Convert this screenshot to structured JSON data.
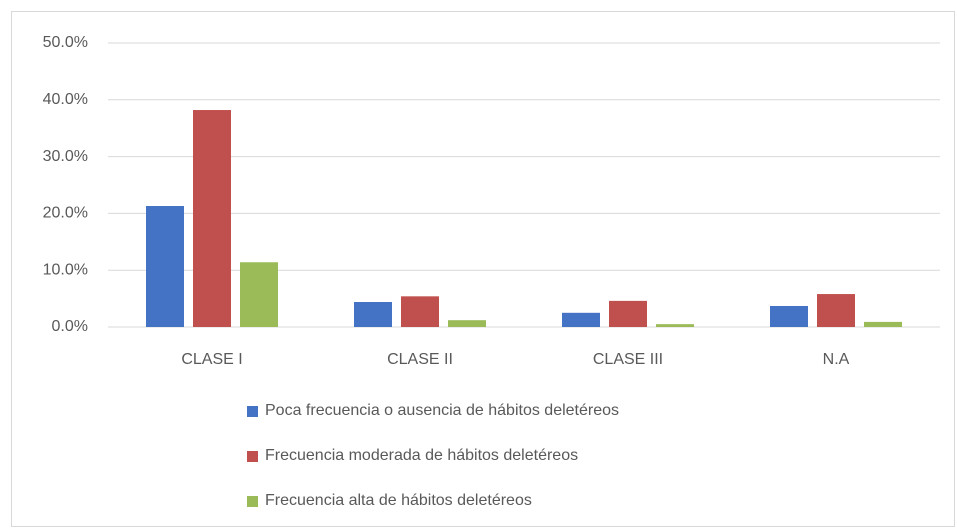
{
  "chart_data": {
    "type": "bar",
    "categories": [
      "CLASE I",
      "CLASE II",
      "CLASE III",
      "N.A"
    ],
    "series": [
      {
        "name": "Poca frecuencia o ausencia de hábitos deletéreos",
        "color": "#4472c4",
        "values": [
          21.3,
          4.4,
          2.5,
          3.7
        ]
      },
      {
        "name": "Frecuencia moderada de hábitos deletéreos",
        "color": "#c0504d",
        "values": [
          38.2,
          5.4,
          4.6,
          5.8
        ]
      },
      {
        "name": "Frecuencia alta de hábitos deletéreos",
        "color": "#9bbb59",
        "values": [
          11.4,
          1.2,
          0.5,
          0.9
        ]
      }
    ],
    "ylim": [
      0,
      50
    ],
    "yticks": [
      {
        "value": 0,
        "label": "0.0%"
      },
      {
        "value": 10,
        "label": "10.0%"
      },
      {
        "value": 20,
        "label": "20.0%"
      },
      {
        "value": 30,
        "label": "30.0%"
      },
      {
        "value": 40,
        "label": "40.0%"
      },
      {
        "value": 50,
        "label": "50.0%"
      }
    ],
    "grid": true,
    "legend": "bottom"
  }
}
